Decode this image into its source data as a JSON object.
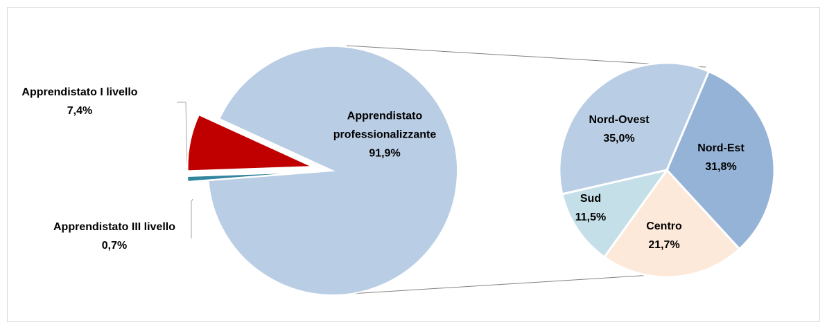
{
  "chart_data": [
    {
      "type": "pie",
      "categories": [
        "Apprendistato I livello",
        "Apprendistato professionalizzante",
        "Apprendistato III livello"
      ],
      "values": [
        7.4,
        91.9,
        0.7
      ],
      "value_labels": [
        "7,4%",
        "91,9%",
        "0,7%"
      ],
      "colors": [
        "#c00000",
        "#b9cde5",
        "#31859c"
      ]
    },
    {
      "type": "pie",
      "categories": [
        "Nord-Ovest",
        "Nord-Est",
        "Centro",
        "Sud"
      ],
      "values": [
        35.0,
        31.8,
        21.7,
        11.5
      ],
      "value_labels": [
        "35,0%",
        "31,8%",
        "21,7%",
        "11,5%"
      ],
      "colors": [
        "#b9cde5",
        "#95b3d7",
        "#fde9d9",
        "#c5dfe9"
      ]
    }
  ]
}
